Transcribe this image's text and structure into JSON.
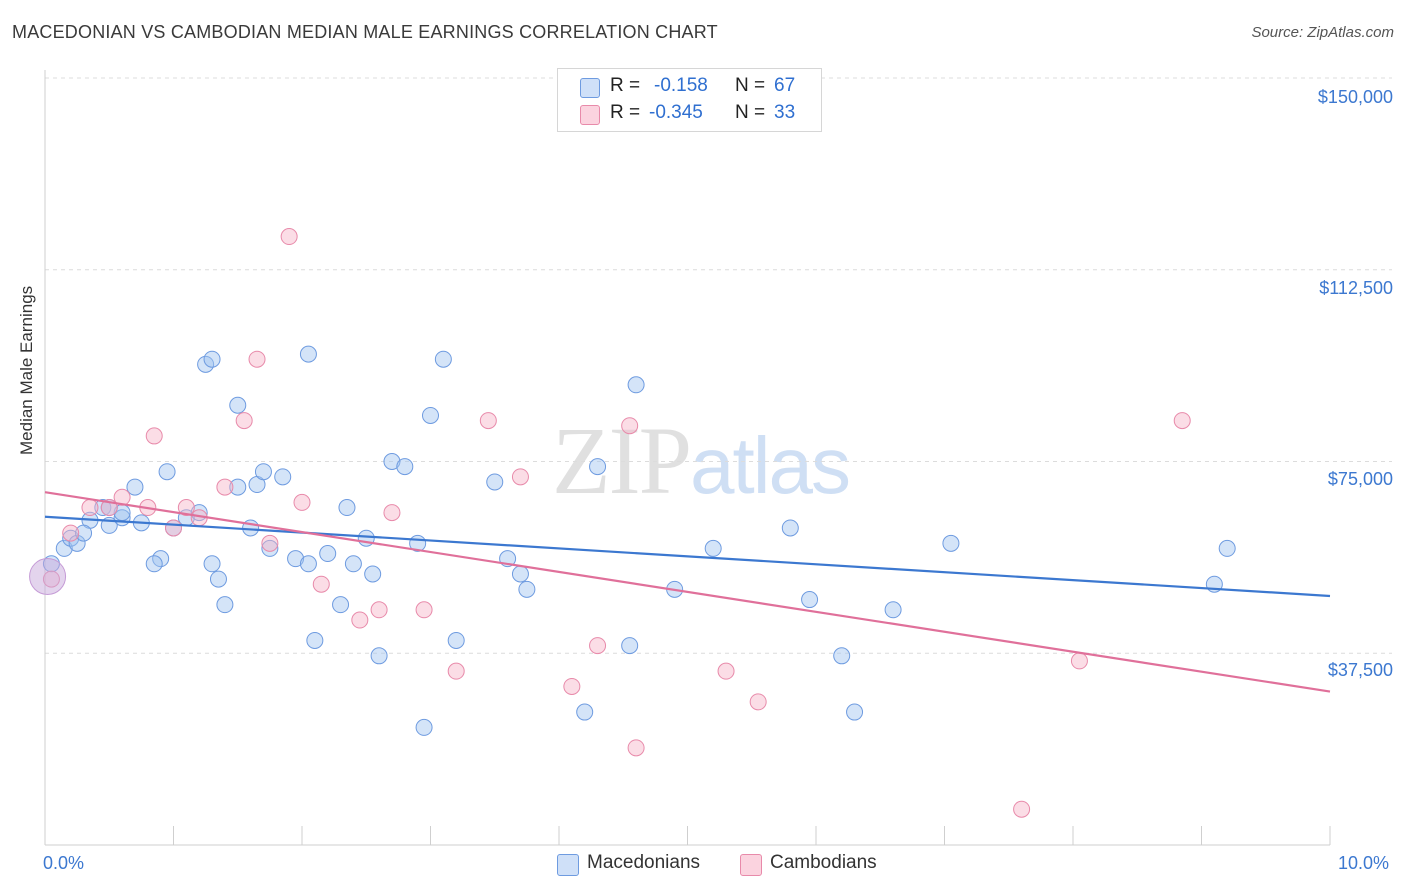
{
  "header": {
    "title": "MACEDONIAN VS CAMBODIAN MEDIAN MALE EARNINGS CORRELATION CHART",
    "source": "Source: ZipAtlas.com"
  },
  "watermark": {
    "part1": "ZIP",
    "part2": "atlas"
  },
  "legend_top": [
    {
      "r_key": "R =",
      "r_value": "-0.158",
      "n_key": "N =",
      "n_value": "67",
      "color": "#a9c6f0"
    },
    {
      "r_key": "R =",
      "r_value": "-0.345",
      "n_key": "N =",
      "n_value": "33",
      "color": "#f6bccd"
    }
  ],
  "legend_bottom": [
    {
      "label": "Macedonians",
      "color": "#a9c6f0"
    },
    {
      "label": "Cambodians",
      "color": "#f6bccd"
    }
  ],
  "axes": {
    "y_title": "Median Male Earnings",
    "y_ticks": [
      "$150,000",
      "$112,500",
      "$75,000",
      "$37,500"
    ],
    "x_min_label": "0.0%",
    "x_max_label": "10.0%"
  },
  "chart_data": {
    "type": "scatter",
    "title": "MACEDONIAN VS CAMBODIAN MEDIAN MALE EARNINGS CORRELATION CHART",
    "xlabel": "",
    "ylabel": "Median Male Earnings",
    "xlim": [
      0,
      10
    ],
    "ylim": [
      0,
      153000
    ],
    "y_ticks": [
      37500,
      75000,
      112500,
      150000
    ],
    "grid": true,
    "legend_position": "top-center",
    "colors": {
      "Macedonians": "#3c78d0",
      "Cambodians": "#e0709a"
    },
    "series": [
      {
        "name": "Macedonians",
        "r": -0.158,
        "n": 67,
        "trend": {
          "x": [
            0,
            10
          ],
          "y": [
            64200,
            48700
          ]
        },
        "points": [
          [
            0.05,
            55000
          ],
          [
            0.15,
            58000
          ],
          [
            0.2,
            60000
          ],
          [
            0.25,
            59000
          ],
          [
            0.35,
            63500
          ],
          [
            0.45,
            66000
          ],
          [
            0.5,
            62500
          ],
          [
            0.6,
            64000
          ],
          [
            0.7,
            70000
          ],
          [
            0.75,
            63000
          ],
          [
            0.9,
            56000
          ],
          [
            1.0,
            62000
          ],
          [
            1.1,
            64000
          ],
          [
            1.2,
            65000
          ],
          [
            1.3,
            55000
          ],
          [
            1.35,
            52000
          ],
          [
            1.4,
            47000
          ],
          [
            1.5,
            70000
          ],
          [
            1.6,
            62000
          ],
          [
            1.65,
            70500
          ],
          [
            1.7,
            73000
          ],
          [
            1.75,
            58000
          ],
          [
            1.85,
            72000
          ],
          [
            1.95,
            56000
          ],
          [
            2.05,
            55000
          ],
          [
            2.1,
            40000
          ],
          [
            2.2,
            57000
          ],
          [
            2.3,
            47000
          ],
          [
            2.35,
            66000
          ],
          [
            2.5,
            60000
          ],
          [
            2.55,
            53000
          ],
          [
            2.6,
            37000
          ],
          [
            2.7,
            75000
          ],
          [
            2.8,
            74000
          ],
          [
            2.9,
            59000
          ],
          [
            2.95,
            23000
          ],
          [
            3.0,
            84000
          ],
          [
            3.1,
            95000
          ],
          [
            3.2,
            40000
          ],
          [
            3.5,
            71000
          ],
          [
            3.6,
            56000
          ],
          [
            3.7,
            53000
          ],
          [
            3.75,
            50000
          ],
          [
            4.2,
            26000
          ],
          [
            4.3,
            74000
          ],
          [
            4.55,
            39000
          ],
          [
            4.6,
            90000
          ],
          [
            4.9,
            50000
          ],
          [
            5.2,
            58000
          ],
          [
            5.8,
            62000
          ],
          [
            5.95,
            48000
          ],
          [
            6.2,
            37000
          ],
          [
            6.3,
            26000
          ],
          [
            6.6,
            46000
          ],
          [
            7.05,
            59000
          ],
          [
            9.1,
            51000
          ],
          [
            9.2,
            58000
          ],
          [
            0.6,
            65000
          ],
          [
            0.85,
            55000
          ],
          [
            1.25,
            94000
          ],
          [
            1.3,
            95000
          ],
          [
            1.5,
            86000
          ],
          [
            2.05,
            96000
          ],
          [
            0.3,
            61000
          ],
          [
            0.5,
            66000
          ],
          [
            2.4,
            55000
          ],
          [
            0.95,
            73000
          ]
        ]
      },
      {
        "name": "Cambodians",
        "r": -0.345,
        "n": 33,
        "trend": {
          "x": [
            0,
            10
          ],
          "y": [
            69000,
            30000
          ]
        },
        "points": [
          [
            0.05,
            52000
          ],
          [
            0.2,
            61000
          ],
          [
            0.35,
            66000
          ],
          [
            0.5,
            66000
          ],
          [
            0.6,
            68000
          ],
          [
            0.8,
            66000
          ],
          [
            0.85,
            80000
          ],
          [
            1.0,
            62000
          ],
          [
            1.1,
            66000
          ],
          [
            1.2,
            64000
          ],
          [
            1.4,
            70000
          ],
          [
            1.55,
            83000
          ],
          [
            1.65,
            95000
          ],
          [
            1.75,
            59000
          ],
          [
            1.9,
            119000
          ],
          [
            2.0,
            67000
          ],
          [
            2.15,
            51000
          ],
          [
            2.45,
            44000
          ],
          [
            2.6,
            46000
          ],
          [
            2.7,
            65000
          ],
          [
            2.95,
            46000
          ],
          [
            3.2,
            34000
          ],
          [
            3.45,
            83000
          ],
          [
            3.7,
            72000
          ],
          [
            4.1,
            31000
          ],
          [
            4.3,
            39000
          ],
          [
            4.55,
            82000
          ],
          [
            4.6,
            19000
          ],
          [
            5.3,
            34000
          ],
          [
            5.55,
            28000
          ],
          [
            7.6,
            7000
          ],
          [
            8.05,
            36000
          ],
          [
            8.85,
            83000
          ]
        ]
      }
    ]
  }
}
